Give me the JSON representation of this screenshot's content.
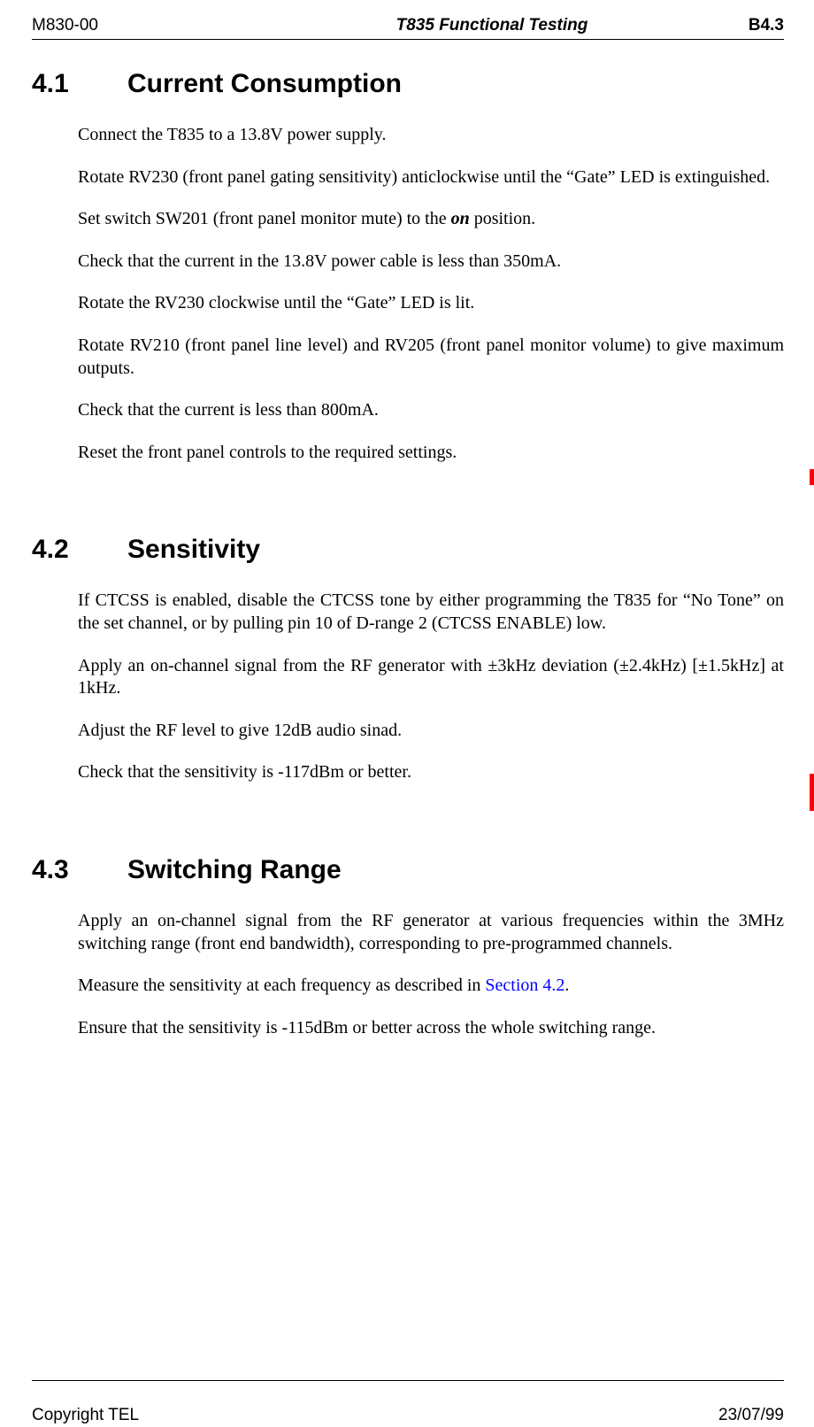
{
  "header": {
    "left": "M830-00",
    "center": "T835 Functional Testing",
    "right": "B4.3"
  },
  "sections": {
    "s41": {
      "num": "4.1",
      "title": "Current Consumption",
      "p1": "Connect the T835 to a 13.8V power supply.",
      "p2": "Rotate RV230 (front panel gating sensitivity) anticlockwise until the “Gate” LED is extinguished.",
      "p3a": "Set switch SW201 (front panel monitor mute) to the ",
      "p3b": "on",
      "p3c": " position.",
      "p4": "Check that the current in the 13.8V power cable is less than 350mA.",
      "p5": "Rotate the RV230 clockwise until the “Gate” LED is lit.",
      "p6": "Rotate RV210 (front panel line level) and RV205 (front panel monitor volume) to give maximum outputs.",
      "p7": "Check that the current is less than 800mA.",
      "p8": "Reset the front panel controls to the required settings."
    },
    "s42": {
      "num": "4.2",
      "title": "Sensitivity",
      "p1": "If CTCSS is enabled, disable the CTCSS tone by either programming the T835 for “No Tone” on the set channel, or by pulling pin 10 of D-range 2 (CTCSS ENABLE) low.",
      "p2": "Apply an on-channel signal from the RF generator with ±3kHz deviation (±2.4kHz) [±1.5kHz] at 1kHz.",
      "p3": "Adjust the RF level to give 12dB audio sinad.",
      "p4": "Check that the sensitivity is -117dBm or better."
    },
    "s43": {
      "num": "4.3",
      "title": "Switching Range",
      "p1": "Apply an on-channel signal from the RF generator at various frequencies within the 3MHz switching range (front end bandwidth), corresponding to pre-programmed channels.",
      "p2a": "Measure the sensitivity at each frequency as described in ",
      "p2b": "Section 4.2",
      "p2c": ".",
      "p3": "Ensure that the sensitivity is -115dBm or better across the whole switching range."
    }
  },
  "footer": {
    "left": "Copyright TEL",
    "right": "23/07/99"
  },
  "colors": {
    "text": "#000000",
    "link": "#0000ff",
    "changebar": "#ff0000",
    "background": "#ffffff"
  }
}
